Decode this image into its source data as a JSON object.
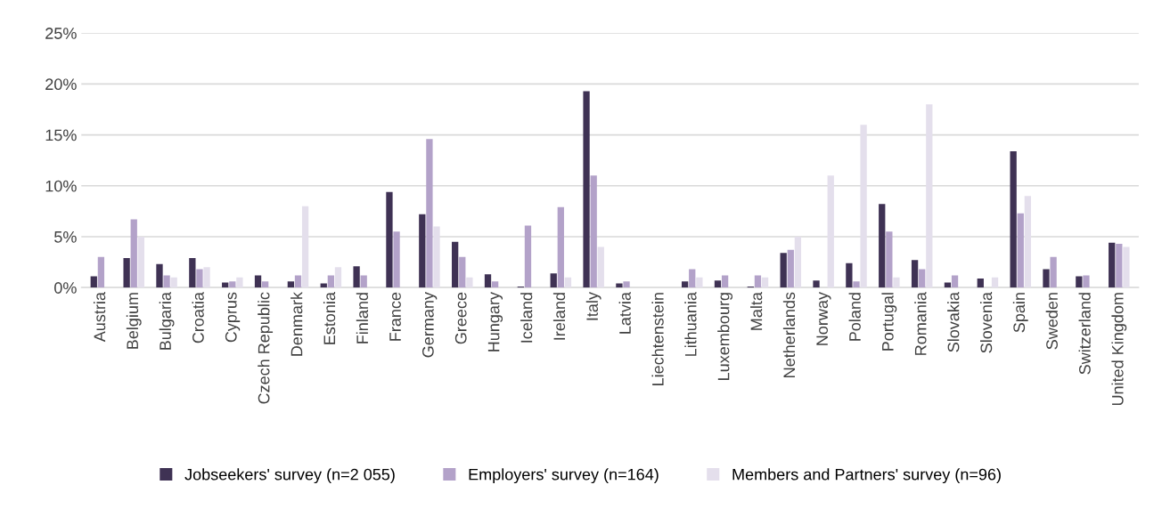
{
  "chart_data": {
    "type": "bar",
    "categories": [
      "Austria",
      "Belgium",
      "Bulgaria",
      "Croatia",
      "Cyprus",
      "Czech Republic",
      "Denmark",
      "Estonia",
      "Finland",
      "France",
      "Germany",
      "Greece",
      "Hungary",
      "Iceland",
      "Ireland",
      "Italy",
      "Latvia",
      "Liechtenstein",
      "Lithuania",
      "Luxembourg",
      "Malta",
      "Netherlands",
      "Norway",
      "Poland",
      "Portugal",
      "Romania",
      "Slovakia",
      "Slovenia",
      "Spain",
      "Sweden",
      "Switzerland",
      "United Kingdom"
    ],
    "series": [
      {
        "name": "Jobseekers' survey (n=2 055)",
        "color": "#3f3254",
        "values": [
          1.1,
          2.9,
          2.3,
          2.9,
          0.5,
          1.2,
          0.6,
          0.4,
          2.1,
          9.4,
          7.2,
          4.5,
          1.3,
          0.1,
          1.4,
          19.3,
          0.4,
          0,
          0.6,
          0.7,
          0.1,
          3.4,
          0.7,
          2.4,
          8.2,
          2.7,
          0.5,
          0.9,
          13.4,
          1.8,
          1.1,
          4.4
        ]
      },
      {
        "name": "Employers' survey (n=164)",
        "color": "#b3a2c9",
        "values": [
          3.0,
          6.7,
          1.2,
          1.8,
          0.6,
          0.6,
          1.2,
          1.2,
          1.2,
          5.5,
          14.6,
          3.0,
          0.6,
          6.1,
          7.9,
          11.0,
          0.6,
          0,
          1.8,
          1.2,
          1.2,
          3.7,
          0,
          0.6,
          5.5,
          1.8,
          1.2,
          0,
          7.3,
          3.0,
          1.2,
          4.3
        ]
      },
      {
        "name": "Members and Partners' survey (n=96)",
        "color": "#e4dfec",
        "values": [
          0,
          5,
          1,
          2,
          1,
          0,
          8,
          2,
          0,
          0,
          6,
          1,
          0,
          0,
          1,
          4,
          0,
          0,
          1,
          0,
          1,
          5,
          11,
          16,
          1,
          18,
          0,
          1,
          9,
          0,
          0,
          4
        ]
      }
    ],
    "ylim": [
      0,
      25
    ],
    "yticks": [
      {
        "value": 0,
        "label": "0%"
      },
      {
        "value": 5,
        "label": "5%"
      },
      {
        "value": 10,
        "label": "10%"
      },
      {
        "value": 15,
        "label": "15%"
      },
      {
        "value": 20,
        "label": "20%"
      },
      {
        "value": 25,
        "label": "25%"
      }
    ],
    "grid": "y",
    "legend": "bottom"
  }
}
